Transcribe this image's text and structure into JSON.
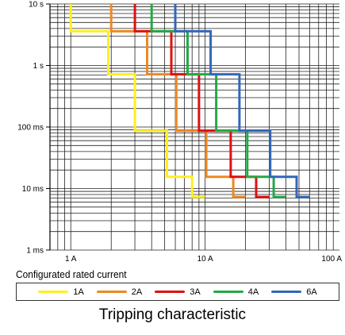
{
  "chart_data": {
    "type": "line",
    "title": "Tripping characteristic",
    "xlabel": "Configurated rated current",
    "ylabel": "",
    "x_scale": "log",
    "y_scale": "log",
    "xlim": [
      0.7,
      100
    ],
    "ylim": [
      0.001,
      10
    ],
    "x_ticks": [
      1,
      10,
      100
    ],
    "x_tick_labels": [
      "1 A",
      "10 A",
      "100 A"
    ],
    "y_ticks": [
      10,
      1,
      0.1,
      0.01,
      0.001
    ],
    "y_tick_labels": [
      "10 s",
      "1 s",
      "100 ms",
      "10 ms",
      "1 ms"
    ],
    "grid": true,
    "legend_position": "bottom",
    "x_unit": "A",
    "y_unit": "s",
    "series": [
      {
        "name": "1A",
        "color": "#ffee22",
        "points": [
          [
            1.0,
            10
          ],
          [
            1.0,
            3.6
          ],
          [
            1.9,
            3.6
          ],
          [
            1.9,
            0.72
          ],
          [
            3.0,
            0.72
          ],
          [
            3.0,
            0.087
          ],
          [
            5.2,
            0.087
          ],
          [
            5.2,
            0.0155
          ],
          [
            8.0,
            0.0155
          ],
          [
            8.0,
            0.0073
          ],
          [
            10.0,
            0.0073
          ]
        ]
      },
      {
        "name": "2A",
        "color": "#ee8822",
        "points": [
          [
            2.0,
            10
          ],
          [
            2.0,
            3.6
          ],
          [
            3.7,
            3.6
          ],
          [
            3.7,
            0.72
          ],
          [
            6.1,
            0.72
          ],
          [
            6.1,
            0.087
          ],
          [
            10.2,
            0.087
          ],
          [
            10.2,
            0.0155
          ],
          [
            16.2,
            0.0155
          ],
          [
            16.2,
            0.0073
          ],
          [
            20.0,
            0.0073
          ]
        ]
      },
      {
        "name": "3A",
        "color": "#dd1111",
        "points": [
          [
            3.0,
            10
          ],
          [
            3.0,
            3.6
          ],
          [
            5.6,
            3.6
          ],
          [
            5.6,
            0.72
          ],
          [
            9.0,
            0.72
          ],
          [
            9.0,
            0.087
          ],
          [
            15.5,
            0.087
          ],
          [
            15.5,
            0.0155
          ],
          [
            24.0,
            0.0155
          ],
          [
            24.0,
            0.0073
          ],
          [
            30.0,
            0.0073
          ]
        ]
      },
      {
        "name": "4A",
        "color": "#22aa44",
        "points": [
          [
            4.0,
            10
          ],
          [
            4.0,
            3.6
          ],
          [
            7.4,
            3.6
          ],
          [
            7.4,
            0.72
          ],
          [
            12.1,
            0.72
          ],
          [
            12.1,
            0.087
          ],
          [
            20.6,
            0.087
          ],
          [
            20.6,
            0.0155
          ],
          [
            32.4,
            0.0155
          ],
          [
            32.4,
            0.0073
          ],
          [
            40.0,
            0.0073
          ]
        ]
      },
      {
        "name": "6A",
        "color": "#3366bb",
        "points": [
          [
            6.0,
            10
          ],
          [
            6.0,
            3.6
          ],
          [
            11.0,
            3.6
          ],
          [
            11.0,
            0.72
          ],
          [
            18.0,
            0.72
          ],
          [
            18.0,
            0.087
          ],
          [
            30.5,
            0.087
          ],
          [
            30.5,
            0.0155
          ],
          [
            48.0,
            0.0155
          ],
          [
            48.0,
            0.0073
          ],
          [
            60.0,
            0.0073
          ]
        ]
      }
    ]
  },
  "legend": {
    "items": [
      "1A",
      "2A",
      "3A",
      "4A",
      "6A"
    ]
  }
}
